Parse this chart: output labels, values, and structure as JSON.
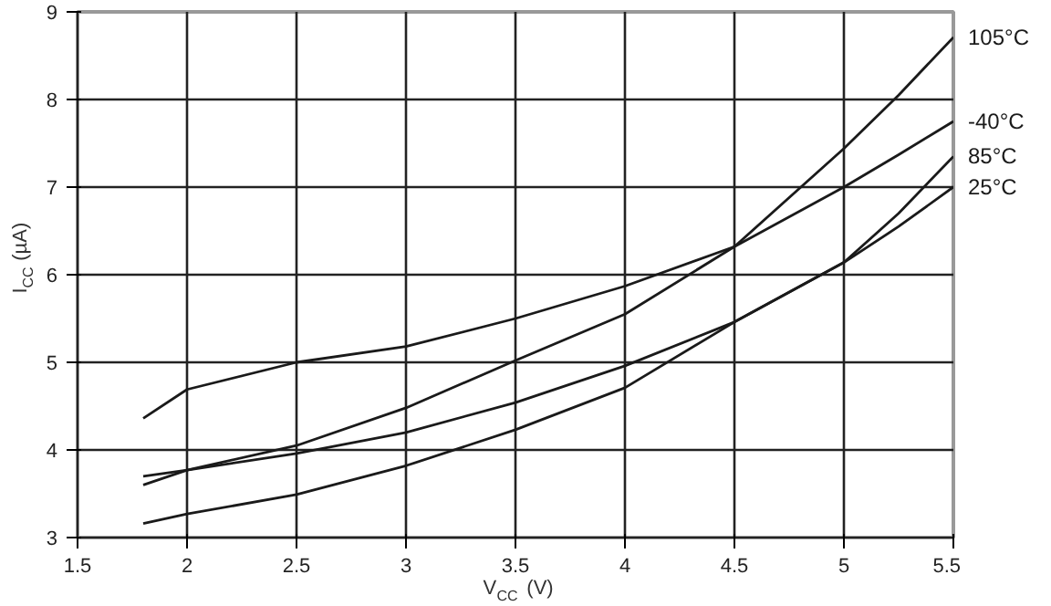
{
  "chart_data": {
    "type": "line",
    "xlabel": "V$_{CC}$ (V)",
    "ylabel": "I$_{CC}$ (µA)",
    "xlim": [
      1.5,
      5.5
    ],
    "ylim": [
      3,
      9
    ],
    "xticks": [
      1.5,
      2,
      2.5,
      3,
      3.5,
      4,
      4.5,
      5,
      5.5
    ],
    "yticks": [
      3,
      4,
      5,
      6,
      7,
      8,
      9
    ],
    "grid": true,
    "x": [
      1.8,
      2,
      2.5,
      3,
      3.5,
      4,
      4.5,
      5,
      5.25,
      5.5
    ],
    "series": [
      {
        "name": "105°C",
        "color": "#1a1a1a",
        "values": [
          3.6,
          3.77,
          4.05,
          4.48,
          5.02,
          5.55,
          6.32,
          7.44,
          8.05,
          8.71
        ]
      },
      {
        "name": "-40°C",
        "color": "#1a1a1a",
        "values": [
          4.36,
          4.69,
          5.0,
          5.18,
          5.5,
          5.87,
          6.32,
          7.0,
          7.37,
          7.75
        ]
      },
      {
        "name": "85°C",
        "color": "#1a1a1a",
        "values": [
          3.7,
          3.77,
          3.96,
          4.2,
          4.54,
          4.96,
          5.46,
          6.14,
          6.7,
          7.35
        ]
      },
      {
        "name": "25°C",
        "color": "#1a1a1a",
        "values": [
          3.16,
          3.27,
          3.49,
          3.82,
          4.23,
          4.71,
          5.46,
          6.14,
          6.55,
          7.0
        ]
      }
    ]
  }
}
